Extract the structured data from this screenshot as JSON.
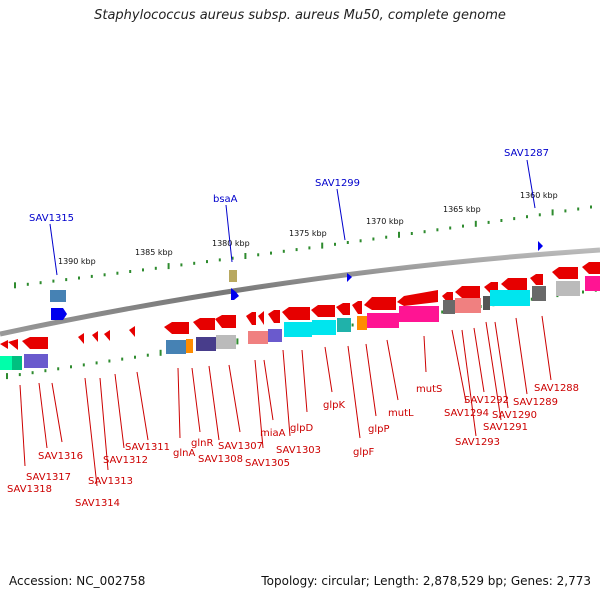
{
  "title": "Staphylococcus aureus subsp. aureus Mu50, complete genome",
  "footer": {
    "accession": "Accession: NC_002758",
    "topology": "Topology: circular; Length: 2,878,529 bp; Genes: 2,773"
  },
  "colors": {
    "backbone": "#888888",
    "cds_red": "#e60000",
    "label_red": "#cc0000",
    "label_blue": "#0000cc",
    "tick_green": "#2e8b2e",
    "cyan": "#00e5ee",
    "magenta": "#ff1493",
    "orange": "#ff8c00",
    "steelblue": "#4682b4",
    "slateblue": "#6a5acd",
    "gray": "#bbbbbb"
  },
  "scale_labels": [
    "1390 kbp",
    "1385 kbp",
    "1380 kbp",
    "1375 kbp",
    "1370 kbp",
    "1365 kbp",
    "1360 kbp"
  ],
  "upper_labels": [
    "SAV1315",
    "bsaA",
    "SAV1299",
    "SAV1287"
  ],
  "lower_labels": [
    "SAV1318",
    "SAV1317",
    "SAV1316",
    "SAV1314",
    "SAV1313",
    "SAV1312",
    "SAV1311",
    "glnA",
    "glnR",
    "SAV1308",
    "SAV1307",
    "SAV1305",
    "miaA",
    "SAV1303",
    "glpD",
    "glpK",
    "glpF",
    "glpP",
    "mutL",
    "mutS",
    "SAV1294",
    "SAV1293",
    "SAV1292",
    "SAV1291",
    "SAV1290",
    "SAV1289",
    "SAV1288"
  ]
}
